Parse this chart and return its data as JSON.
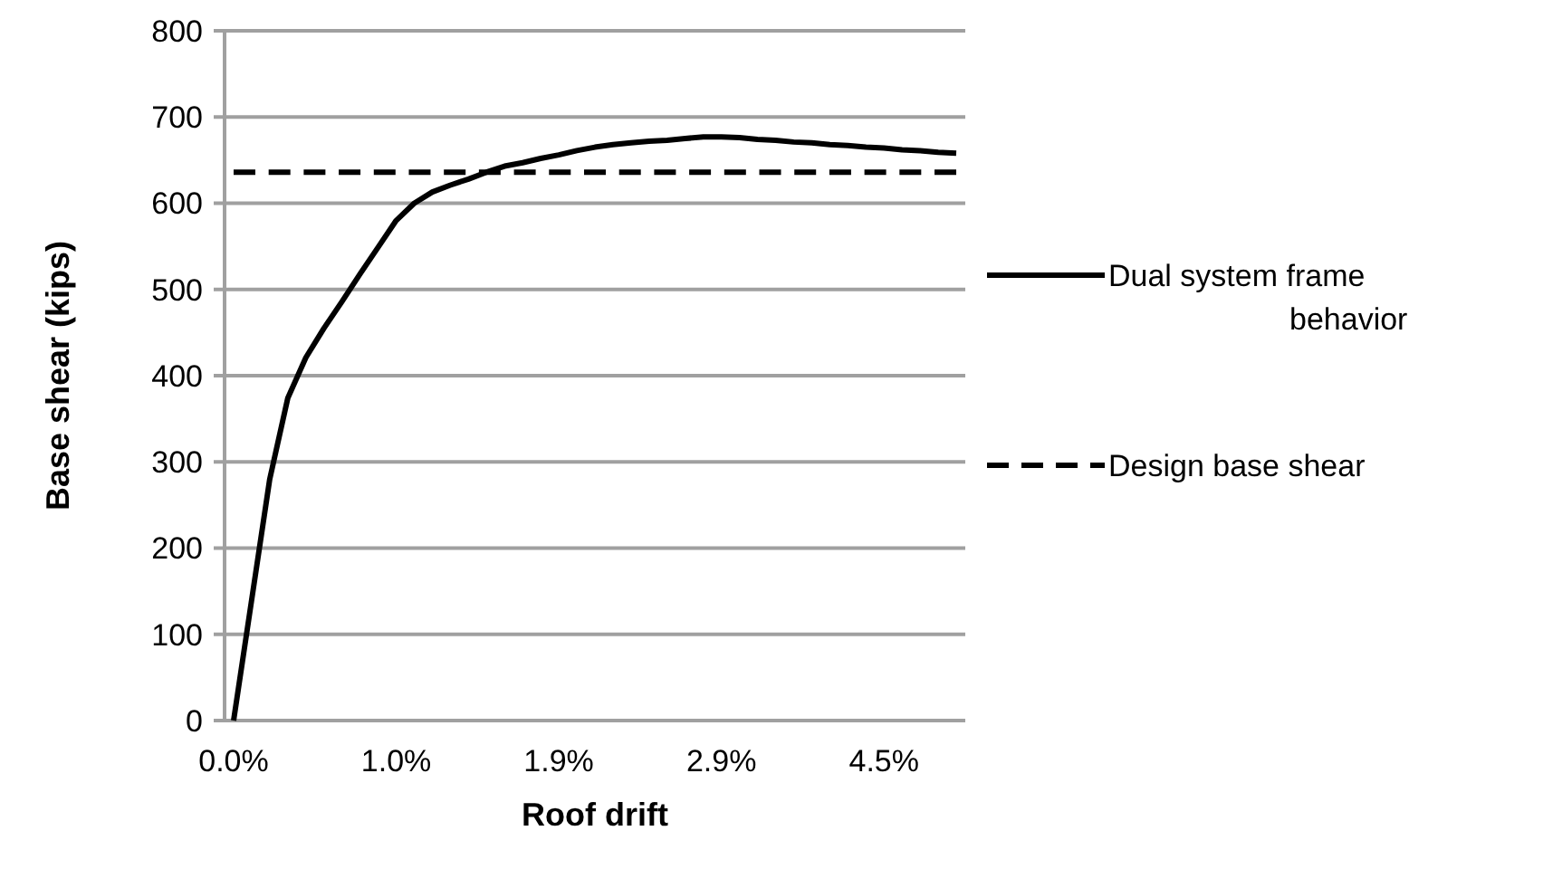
{
  "chart_data": {
    "type": "line",
    "xlabel": "Roof drift",
    "ylabel": "Base shear (kips)",
    "categories": [
      "0.0%",
      null,
      null,
      null,
      null,
      null,
      null,
      null,
      null,
      "1.0%",
      null,
      null,
      null,
      null,
      null,
      null,
      null,
      null,
      "1.9%",
      null,
      null,
      null,
      null,
      null,
      null,
      null,
      null,
      "2.9%",
      null,
      null,
      null,
      null,
      null,
      null,
      null,
      null,
      "4.5%",
      null,
      null,
      null,
      null
    ],
    "series": [
      {
        "name": "Dual system frame behavior",
        "color": "#000000",
        "line_style": "solid",
        "values": [
          0,
          140,
          280,
          374,
          421,
          455,
          486,
          518,
          549,
          580,
          600,
          613,
          621,
          628,
          636,
          643,
          647,
          652,
          656,
          661,
          665,
          668,
          670,
          672,
          673,
          675,
          677,
          677,
          676,
          674,
          673,
          671,
          670,
          668,
          667,
          665,
          664,
          662,
          661,
          659,
          658
        ]
      },
      {
        "name": "Design base shear",
        "color": "#000000",
        "line_style": "dashed",
        "values": [
          636,
          636,
          636,
          636,
          636,
          636,
          636,
          636,
          636,
          636,
          636,
          636,
          636,
          636,
          636,
          636,
          636,
          636,
          636,
          636,
          636,
          636,
          636,
          636,
          636,
          636,
          636,
          636,
          636,
          636,
          636,
          636,
          636,
          636,
          636,
          636,
          636,
          636,
          636,
          636,
          636
        ]
      }
    ],
    "ylim": [
      0,
      800
    ],
    "yticks": [
      0,
      100,
      200,
      300,
      400,
      500,
      600,
      700,
      800
    ],
    "grid": "y",
    "legend": "right",
    "marker": "none"
  }
}
